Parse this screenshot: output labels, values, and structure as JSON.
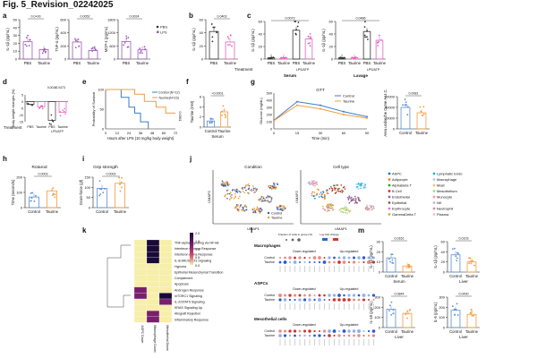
{
  "title": "Fig. 5_Revision_02242025",
  "colors": {
    "control": "#333333",
    "taurine_purple": "#9b59b6",
    "pink": "#e75fbf",
    "blue": "#3a7ec6",
    "orange": "#f39c3c",
    "ctrl_blue": "#5b8fd0"
  },
  "panels": {
    "a": {
      "letter": "a",
      "charts": [
        {
          "ylabel": "IL-1β (pg/mL)",
          "pval": "0.0+00",
          "cats": [
            "PBS",
            "Taurine"
          ],
          "ylim": [
            0,
            50
          ],
          "ticks": [
            "0",
            "10",
            "20",
            "30",
            "40",
            "50"
          ],
          "values": [
            22,
            12
          ]
        },
        {
          "ylabel": "TNF-α (pg/mL)",
          "pval": "0.0052",
          "cats": [
            "PBS",
            "Taurine"
          ],
          "ylim": [
            0,
            600
          ],
          "ticks": [
            "0",
            "200",
            "400",
            "600"
          ],
          "values": [
            260,
            130
          ]
        },
        {
          "ylabel": "MCP-1 (pg/mL)",
          "pval": "0.0024",
          "cats": [
            "PBS",
            "Taurine"
          ],
          "ylim": [
            0,
            1800
          ],
          "ticks": [
            "0",
            "600",
            "1200",
            "1800"
          ],
          "values": [
            800,
            420
          ]
        }
      ],
      "legend": [
        "PBS",
        "LPS"
      ]
    },
    "b": {
      "letter": "b",
      "ylabel": "IL-1β (pg/mL)",
      "pval": "0.0403",
      "cats": [
        "PBS",
        "Taurine"
      ],
      "ticks": [
        "0",
        "20",
        "40",
        "60"
      ],
      "values": [
        42,
        26
      ]
    },
    "c": {
      "letter": "c",
      "groups": [
        {
          "name": "Serum",
          "ylabel": "IL-1β (pg/mL)",
          "pval": "0.0073",
          "cats": [
            "PBS",
            "Taurine",
            "PBS",
            "Taurine"
          ],
          "treat": "LPS/ATP",
          "values": [
            2,
            2,
            46,
            32
          ],
          "ticks": [
            "0",
            "20",
            "40",
            "60"
          ]
        },
        {
          "name": "Lavage",
          "ylabel": "IL-1β (pg/mL)",
          "pval": "0.0486",
          "cats": [
            "PBS",
            "Taurine",
            "PBS",
            "Taurine"
          ],
          "treat": "LPS/ATP",
          "values": [
            2,
            2,
            44,
            30
          ],
          "ticks": [
            "0",
            "20",
            "40",
            "60"
          ]
        }
      ],
      "treatment_label": "Treatment"
    },
    "d": {
      "letter": "d",
      "ylabel": "Body weight changes (%)",
      "pvals": [
        "0.0016",
        "0.0473"
      ],
      "cats": [
        "PBS",
        "Taurine",
        "PBS",
        "Taurine"
      ],
      "treat": "LPS/ATP",
      "treatment_label": "Treatment",
      "values": [
        -2,
        -4,
        -14,
        -8
      ],
      "ticks": [
        "5",
        "0",
        "-5",
        "-10",
        "-15"
      ]
    },
    "e": {
      "letter": "e",
      "ylabel": "Probability of Survival",
      "xlabel": "Hours after LPS (10 mg/kg body weight)",
      "legend": [
        "Control (N=12)",
        "Taurine(N=15)"
      ],
      "pval": "0.0361",
      "xticks": [
        "0",
        "12",
        "24",
        "36",
        "48",
        "60",
        "72"
      ],
      "yticks": [
        "0",
        "50",
        "100"
      ],
      "series": [
        {
          "name": "Control",
          "points": [
            [
              0,
              100
            ],
            [
              16,
              100
            ],
            [
              16,
              80
            ],
            [
              24,
              80
            ],
            [
              24,
              55
            ],
            [
              30,
              55
            ],
            [
              30,
              40
            ],
            [
              36,
              40
            ],
            [
              36,
              18
            ],
            [
              44,
              18
            ],
            [
              44,
              0
            ]
          ]
        },
        {
          "name": "Taurine",
          "points": [
            [
              0,
              100
            ],
            [
              30,
              100
            ],
            [
              30,
              88
            ],
            [
              40,
              88
            ],
            [
              40,
              70
            ],
            [
              52,
              70
            ],
            [
              52,
              55
            ],
            [
              62,
              55
            ],
            [
              62,
              40
            ],
            [
              72,
              40
            ]
          ]
        }
      ]
    },
    "f": {
      "letter": "f",
      "ylabel": "Taurine (mM)",
      "pval": "<0.0001",
      "cats": [
        "Control",
        "Taurine"
      ],
      "xlabel": "Serum",
      "ticks": [
        "0",
        "2",
        "4",
        "6"
      ],
      "values": [
        1.2,
        3.0
      ]
    },
    "g": {
      "letter": "g",
      "title": "GTT",
      "ylabel": "Glucose (mg/dL)",
      "xlabel": "Time (min)",
      "legend": [
        "Control",
        "Taurine"
      ],
      "xticks": [
        "0",
        "15",
        "30",
        "60",
        "90"
      ],
      "yticks": [
        "0",
        "100",
        "200",
        "300",
        "400",
        "500"
      ],
      "series": [
        {
          "name": "Control",
          "x": [
            0,
            15,
            30,
            60,
            90
          ],
          "y": [
            120,
            380,
            330,
            240,
            170
          ]
        },
        {
          "name": "Taurine",
          "x": [
            0,
            15,
            30,
            60,
            90
          ],
          "y": [
            115,
            330,
            280,
            200,
            150
          ]
        }
      ],
      "auc": {
        "ylabel": "Area under the Curve A.U.C.",
        "pval": "0.0081",
        "cats": [
          "Control",
          "Taurine"
        ],
        "ticks": [
          "0",
          "20000",
          "40000",
          "60000"
        ],
        "values": [
          40000,
          30000
        ]
      }
    },
    "h": {
      "letter": "h",
      "title": "Rotarod",
      "ylabel": "Time (seconds)",
      "pval": "0.0003",
      "cats": [
        "Control",
        "Taurine"
      ],
      "ticks": [
        "0",
        "100",
        "200"
      ],
      "values": [
        70,
        110
      ]
    },
    "i": {
      "letter": "i",
      "title": "Grip strength",
      "ylabel": "Gram-force (gf)",
      "pval": "0.0002",
      "cats": [
        "Control",
        "Taurine"
      ],
      "ticks": [
        "0",
        "50",
        "100",
        "150"
      ],
      "values": [
        95,
        120
      ]
    },
    "j": {
      "letter": "j",
      "condition_title": "Condition",
      "celltype_title": "Cell type",
      "xlabel": "UMAP1",
      "ylabel": "UMAP2",
      "condition_legend": [
        "Control",
        "Taurine"
      ],
      "celltypes": [
        {
          "name": "ASPC",
          "color": "#1f77b4"
        },
        {
          "name": "Adipocyte",
          "color": "#ff7f0e"
        },
        {
          "name": "AlphaBeta T",
          "color": "#2ca02c"
        },
        {
          "name": "B Cell",
          "color": "#d62728"
        },
        {
          "name": "Endothelial",
          "color": "#9467bd"
        },
        {
          "name": "Epithelial",
          "color": "#8c564b"
        },
        {
          "name": "Erythrocyte",
          "color": "#e377c2"
        },
        {
          "name": "GammaDelta T",
          "color": "#bcbd22"
        },
        {
          "name": "Lymphatic Endo",
          "color": "#17becf"
        },
        {
          "name": "Macrophage",
          "color": "#aec7e8"
        },
        {
          "name": "Mast",
          "color": "#ffbb78"
        },
        {
          "name": "Mesothelium",
          "color": "#98df8a"
        },
        {
          "name": "Monocyte",
          "color": "#ff9896"
        },
        {
          "name": "NK",
          "color": "#c5b0d5"
        },
        {
          "name": "Neutrophil",
          "color": "#c49c94"
        },
        {
          "name": "Plasma",
          "color": "#f7b6d2"
        }
      ]
    },
    "k": {
      "letter": "k",
      "colorbar": [
        "2.0",
        "1.5",
        "1.0",
        "0.5",
        "0.0"
      ],
      "columns": [
        "ASPC Down",
        "Macrophage Down",
        "Mesothelial Down"
      ],
      "rows": [
        "TNF-alpha Signaling via NF-kB",
        "Interferon Gamma Response",
        "Interferon Alpha Response",
        "IL-6/JAK/STAT3 Signaling",
        "Hypoxia",
        "Epithelial Mesenchymal Transition",
        "Complement",
        "Apoptosis",
        "Androgen Response",
        "mTORC1 Signaling",
        "IL-2/STAT5 Signaling",
        "KRAS Signaling Up",
        "Allograft Rejection",
        "Inflammatory Response"
      ],
      "values": [
        [
          0.1,
          2.0,
          0.3
        ],
        [
          0.1,
          1.9,
          0.2
        ],
        [
          0.1,
          1.8,
          0.2
        ],
        [
          0.1,
          1.7,
          0.2
        ],
        [
          0.1,
          0.2,
          0.1
        ],
        [
          0.1,
          0.2,
          0.1
        ],
        [
          0.1,
          0.3,
          0.1
        ],
        [
          0.1,
          0.2,
          0.1
        ],
        [
          1.6,
          0.2,
          0.1
        ],
        [
          1.5,
          0.1,
          1.7
        ],
        [
          0.2,
          0.1,
          1.6
        ],
        [
          0.1,
          0.2,
          0.1
        ],
        [
          0.1,
          1.5,
          0.1
        ],
        [
          0.1,
          1.4,
          0.1
        ]
      ]
    },
    "l": {
      "letter": "l",
      "legend_title_size": "Fraction of cells in group (%)",
      "legend_title_color": "Log fold change",
      "sections": [
        {
          "name": "Macrophages",
          "down": "Down-regulated",
          "up": "Up-regulated",
          "rows": [
            "Control",
            "Taurine"
          ],
          "genes_count": 20
        },
        {
          "name": "ASPCs",
          "down": "Down-regulated",
          "up": "Up-regulated",
          "rows": [
            "Control",
            "Taurine"
          ],
          "genes_count": 20
        },
        {
          "name": "Mesothelial cells",
          "down": "Down-regulated",
          "up": "Up-regulated",
          "rows": [
            "Control",
            "Taurine"
          ],
          "genes_count": 20
        }
      ]
    },
    "m": {
      "letter": "m",
      "charts": [
        {
          "ylabel": "IL-1β (pg/mL)",
          "pval": "0.0161",
          "cats": [
            "Control",
            "Taurine"
          ],
          "xlabel": "Serum",
          "ticks": [
            "0",
            "10",
            "20",
            "30"
          ],
          "values": [
            14,
            6
          ]
        },
        {
          "ylabel": "IL-1β (pg/mL)",
          "pval": "0.0103",
          "cats": [
            "Control",
            "Taurine"
          ],
          "xlabel": "Liver",
          "ticks": [
            "0",
            "20",
            "40",
            "60"
          ],
          "values": [
            34,
            20
          ]
        },
        {
          "ylabel": "IL-18 (pg/mL)",
          "pval": "0.0844",
          "cats": [
            "Control",
            "Taurine"
          ],
          "xlabel": "Liver",
          "ticks": [
            "0",
            "100",
            "200",
            "300"
          ],
          "values": [
            180,
            140
          ]
        },
        {
          "ylabel": "IL-6 (pg/mL)",
          "pval": "0.0490",
          "cats": [
            "Control",
            "Taurine"
          ],
          "xlabel": "Liver",
          "ticks": [
            "0",
            "100",
            "200",
            "300"
          ],
          "values": [
            170,
            130
          ]
        }
      ]
    }
  }
}
